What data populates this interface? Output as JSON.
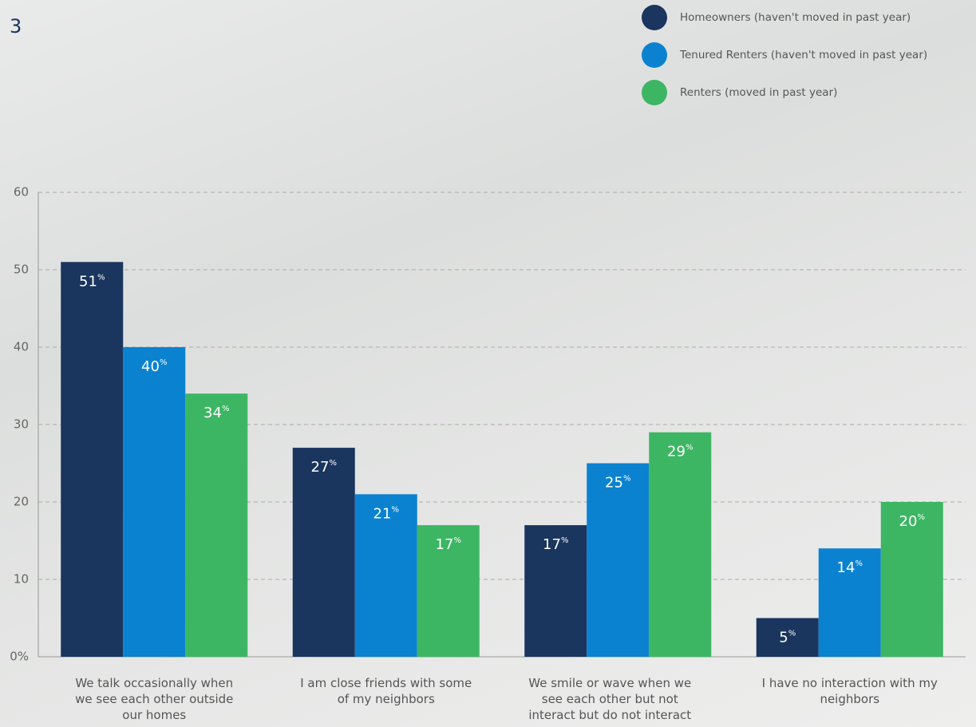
{
  "chart_data": {
    "type": "bar",
    "annotation": "3",
    "categories": [
      "We talk occasionally when we see each other outside our homes",
      "I am close friends with some of my neighbors",
      "We smile or wave when we see each other but not interact but do not interact",
      "I have no interaction with my neighbors"
    ],
    "series": [
      {
        "name": "Homeowners (haven't moved in past year)",
        "color": "#1a355e",
        "values": [
          51,
          27,
          17,
          5
        ],
        "value_labels": [
          "51%",
          "27%",
          "17%",
          "5%"
        ]
      },
      {
        "name": "Tenured Renters (haven't moved in past year)",
        "color": "#0a82d0",
        "values": [
          40,
          21,
          25,
          14
        ],
        "value_labels": [
          "40%",
          "21%",
          "25%",
          "14%"
        ]
      },
      {
        "name": "Renters (moved in past year)",
        "color": "#3cb663",
        "values": [
          34,
          17,
          29,
          20
        ],
        "value_labels": [
          "34%",
          "17%",
          "29%",
          "20%"
        ]
      }
    ],
    "ylim": [
      0,
      60
    ],
    "yticks": [
      {
        "value": 0,
        "label": "0%"
      },
      10,
      20,
      30,
      40,
      50,
      60
    ],
    "grid": true,
    "legend": "top-right"
  }
}
